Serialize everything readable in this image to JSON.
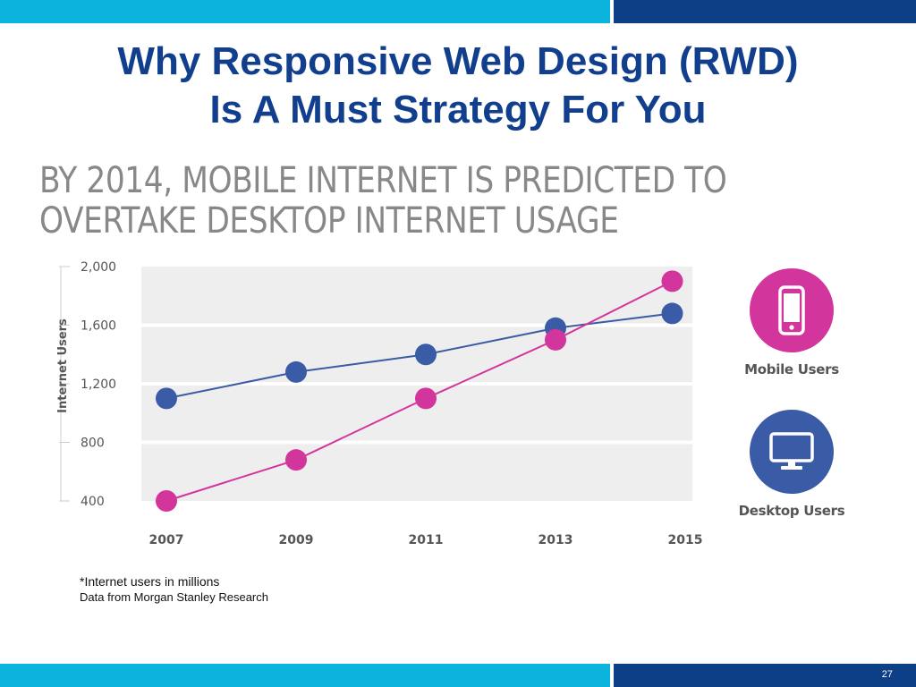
{
  "slide": {
    "title_line1": "Why Responsive Web Design (RWD)",
    "title_line2": "Is A Must Strategy For You",
    "page_number": "27",
    "footnote_line1": "*Internet users in millions",
    "footnote_line2": "Data from Morgan Stanley Research"
  },
  "colors": {
    "bar_light": "#0bb3dd",
    "bar_dark": "#0c3f86",
    "mobile": "#d2359b",
    "desktop": "#3a5ba5",
    "plot_bg": "#eeeeee"
  },
  "chart_data": {
    "type": "line",
    "title_line1": "BY 2014, MOBILE INTERNET IS PREDICTED TO",
    "title_line2": "OVERTAKE DESKTOP INTERNET USAGE",
    "xlabel": "",
    "ylabel": "Internet Users",
    "categories": [
      "2007",
      "2009",
      "2011",
      "2013",
      "2015"
    ],
    "ylim": [
      400,
      2000
    ],
    "yticks": [
      400,
      800,
      1200,
      1600,
      2000
    ],
    "ytick_labels": [
      "400",
      "800",
      "1,200",
      "1,600",
      "2,000"
    ],
    "grid": true,
    "legend_position": "right",
    "series": [
      {
        "name": "Mobile Users",
        "color": "#d2359b",
        "icon": "phone-icon",
        "x": [
          2007,
          2009,
          2011,
          2013,
          2014.8
        ],
        "values": [
          400,
          680,
          1100,
          1500,
          1900
        ]
      },
      {
        "name": "Desktop Users",
        "color": "#3a5ba5",
        "icon": "monitor-icon",
        "x": [
          2007,
          2009,
          2011,
          2013,
          2014.8
        ],
        "values": [
          1100,
          1280,
          1400,
          1580,
          1680
        ]
      }
    ]
  }
}
